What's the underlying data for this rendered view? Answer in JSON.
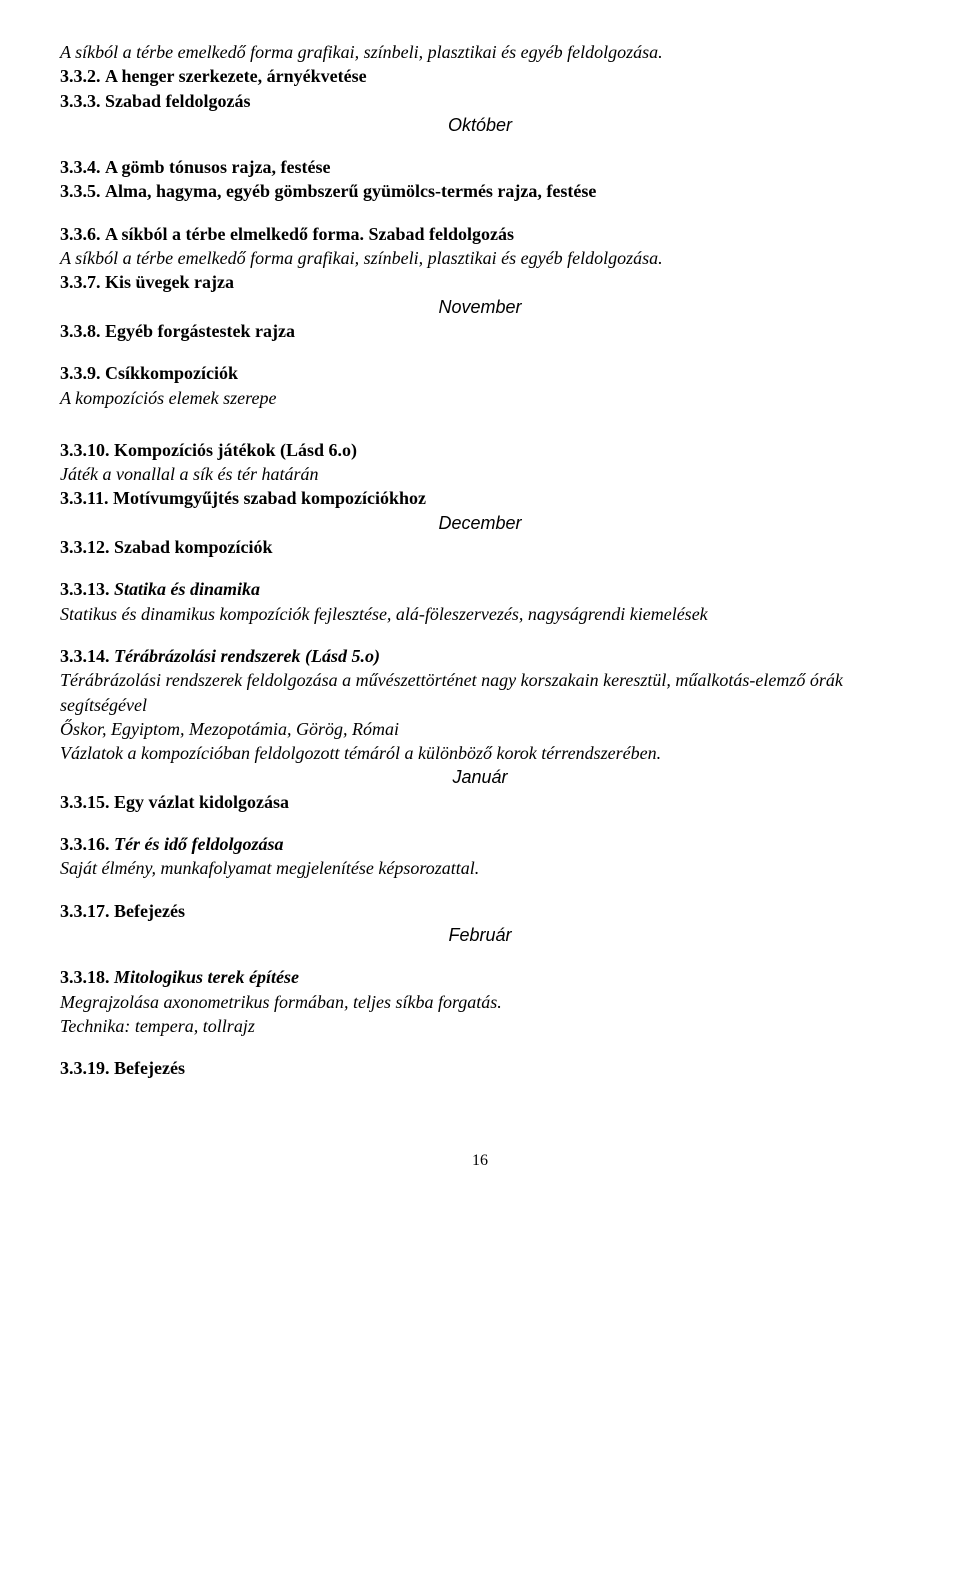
{
  "line1": "A síkból a térbe emelkedő forma grafikai, színbeli, plasztikai és egyéb feldolgozása.",
  "num332": "3.3.2.",
  "title332": "A henger szerkezete, árnyékvetése",
  "num333": "3.3.3.",
  "title333": "Szabad feldolgozás",
  "month_october": "Október",
  "num334": "3.3.4.",
  "title334": "A gömb tónusos rajza, festése",
  "num335": "3.3.5.",
  "title335": "Alma, hagyma, egyéb gömbszerű gyümölcs-termés rajza, festése",
  "num336": "3.3.6.",
  "title336": "A síkból a térbe elmelkedő forma. Szabad feldolgozás",
  "line336b": "A síkból a térbe emelkedő forma grafikai, színbeli, plasztikai és egyéb feldolgozása.",
  "num337": "3.3.7.",
  "title337": "Kis üvegek rajza",
  "month_november": "November",
  "num338": "3.3.8.",
  "title338": "Egyéb forgástestek rajza",
  "num339": "3.3.9.",
  "title339": "Csíkkompozíciók",
  "line339b": "A kompozíciós elemek szerepe",
  "num3310": "3.3.10.",
  "title3310": "Kompozíciós játékok (Lásd 6.o)",
  "line3310b": "Játék a vonallal a sík és tér határán",
  "num3311": "3.3.11.",
  "title3311": "Motívumgyűjtés szabad kompozíciókhoz",
  "month_december": "December",
  "num3312": "3.3.12.",
  "title3312": "Szabad kompozíciók",
  "num3313": "3.3.13.",
  "title3313": "Statika és dinamika",
  "line3313b": "Statikus és dinamikus kompozíciók fejlesztése, alá-föleszervezés, nagyságrendi kiemelések",
  "num3314": "3.3.14.",
  "title3314": "Térábrázolási rendszerek (Lásd 5.o)",
  "line3314b": "Térábrázolási rendszerek feldolgozása a művészettörténet nagy korszakain keresztül, műalkotás-elemző órák segítségével",
  "line3314c": "Őskor, Egyiptom, Mezopotámia, Görög, Római",
  "line3314d": "Vázlatok a kompozícióban feldolgozott témáról a különböző korok térrendszerében.",
  "month_january": "Január",
  "num3315": "3.3.15.",
  "title3315": "Egy vázlat kidolgozása",
  "num3316": "3.3.16.",
  "title3316": "Tér és idő feldolgozása",
  "line3316b": "Saját élmény, munkafolyamat megjelenítése képsorozattal.",
  "num3317": "3.3.17.",
  "title3317": "Befejezés",
  "month_february": "Február",
  "num3318": "3.3.18.",
  "title3318": "Mitologikus terek építése",
  "line3318b": " Megrajzolása axonometrikus formában, teljes síkba forgatás.",
  "line3318c": "Technika: tempera, tollrajz",
  "num3319": "3.3.19.",
  "title3319": "Befejezés",
  "pagenum": "16"
}
